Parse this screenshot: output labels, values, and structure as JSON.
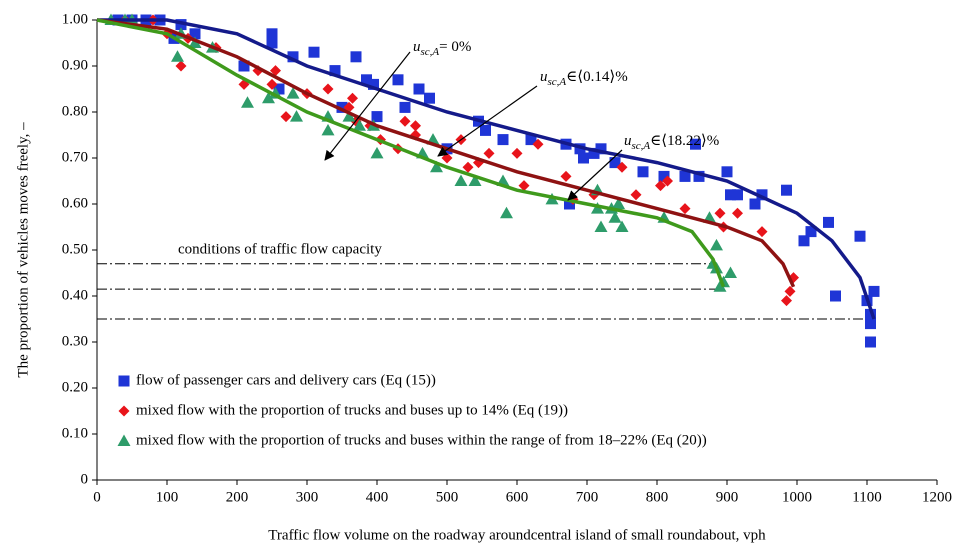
{
  "chart_data": {
    "type": "scatter",
    "xlabel": "Traffic flow volume on the roadway aroundcentral island of small roundabout, vph",
    "ylabel": "The proportion of vehicles moves freely, –",
    "xlim": [
      0,
      1200
    ],
    "ylim": [
      0,
      1
    ],
    "xticks": [
      0,
      100,
      200,
      300,
      400,
      500,
      600,
      700,
      800,
      900,
      1000,
      1100,
      1200
    ],
    "yticks": [
      0,
      {
        "value": 0.1,
        "label": "0.10"
      },
      {
        "value": 0.2,
        "label": "0.20"
      },
      {
        "value": 0.3,
        "label": "0.30"
      },
      {
        "value": 0.4,
        "label": "0.40"
      },
      {
        "value": 0.5,
        "label": "0.50"
      },
      {
        "value": 0.6,
        "label": "0.60"
      },
      {
        "value": 0.7,
        "label": "0.70"
      },
      {
        "value": 0.8,
        "label": "0.80"
      },
      {
        "value": 0.9,
        "label": "0.90"
      },
      {
        "value": 1.0,
        "label": "1.00"
      }
    ],
    "legend": "lower left",
    "series": [
      {
        "name": "flow of passenger cars and delivery cars (Eq (15))",
        "marker": "square",
        "color": "#1f35d6",
        "x": [
          30,
          50,
          70,
          90,
          110,
          120,
          140,
          210,
          250,
          250,
          260,
          280,
          310,
          340,
          350,
          370,
          385,
          395,
          400,
          430,
          440,
          460,
          475,
          500,
          545,
          555,
          580,
          620,
          670,
          675,
          690,
          695,
          710,
          720,
          740,
          780,
          810,
          840,
          855,
          860,
          900,
          905,
          915,
          940,
          950,
          985,
          1010,
          1020,
          1045,
          1055,
          1090,
          1100,
          1105,
          1105,
          1110,
          1105
        ],
        "y": [
          1.0,
          1.0,
          1.0,
          1.0,
          0.96,
          0.99,
          0.97,
          0.9,
          0.97,
          0.95,
          0.85,
          0.92,
          0.93,
          0.89,
          0.81,
          0.92,
          0.87,
          0.86,
          0.79,
          0.87,
          0.81,
          0.85,
          0.83,
          0.72,
          0.78,
          0.76,
          0.74,
          0.74,
          0.73,
          0.6,
          0.72,
          0.7,
          0.71,
          0.72,
          0.69,
          0.67,
          0.66,
          0.66,
          0.73,
          0.66,
          0.67,
          0.62,
          0.62,
          0.6,
          0.62,
          0.63,
          0.52,
          0.54,
          0.56,
          0.4,
          0.53,
          0.39,
          0.34,
          0.3,
          0.41,
          0.36
        ]
      },
      {
        "name": "mixed flow with the proportion of trucks and buses up to 14% (Eq (19))",
        "marker": "diamond",
        "color": "#e8141b",
        "x": [
          40,
          80,
          100,
          120,
          130,
          170,
          210,
          230,
          250,
          255,
          270,
          300,
          330,
          360,
          365,
          370,
          390,
          405,
          430,
          440,
          455,
          455,
          500,
          520,
          530,
          545,
          560,
          600,
          610,
          630,
          670,
          680,
          710,
          750,
          770,
          805,
          815,
          840,
          890,
          895,
          915,
          950,
          985,
          990,
          995
        ],
        "y": [
          1.0,
          1.0,
          0.97,
          0.9,
          0.96,
          0.94,
          0.86,
          0.89,
          0.86,
          0.89,
          0.79,
          0.84,
          0.85,
          0.81,
          0.83,
          0.78,
          0.77,
          0.74,
          0.72,
          0.78,
          0.77,
          0.75,
          0.7,
          0.74,
          0.68,
          0.69,
          0.71,
          0.71,
          0.64,
          0.73,
          0.66,
          0.61,
          0.62,
          0.68,
          0.62,
          0.64,
          0.65,
          0.59,
          0.58,
          0.55,
          0.58,
          0.54,
          0.39,
          0.41,
          0.44
        ]
      },
      {
        "name": "mixed flow with the proportion of trucks and buses within the range of from 18–22% (Eq (20))",
        "marker": "triangle",
        "color": "#2e9c6a",
        "x": [
          20,
          40,
          50,
          115,
          120,
          140,
          165,
          215,
          245,
          255,
          280,
          285,
          330,
          330,
          360,
          375,
          395,
          400,
          465,
          480,
          485,
          520,
          540,
          580,
          585,
          650,
          715,
          715,
          720,
          735,
          740,
          745,
          750,
          810,
          875,
          880,
          885,
          885,
          890,
          895,
          905
        ],
        "y": [
          1.0,
          1.0,
          1.0,
          0.92,
          0.97,
          0.95,
          0.94,
          0.82,
          0.83,
          0.84,
          0.84,
          0.79,
          0.79,
          0.76,
          0.79,
          0.77,
          0.77,
          0.71,
          0.71,
          0.74,
          0.68,
          0.65,
          0.65,
          0.65,
          0.58,
          0.61,
          0.63,
          0.59,
          0.55,
          0.59,
          0.57,
          0.6,
          0.55,
          0.57,
          0.57,
          0.47,
          0.51,
          0.46,
          0.42,
          0.43,
          0.45
        ]
      }
    ],
    "curves": [
      {
        "color": "#141a8a",
        "x": [
          0,
          100,
          200,
          300,
          400,
          500,
          600,
          700,
          800,
          900,
          1000,
          1050,
          1090,
          1110
        ],
        "y": [
          1.0,
          1.0,
          0.97,
          0.9,
          0.85,
          0.8,
          0.76,
          0.72,
          0.69,
          0.65,
          0.58,
          0.52,
          0.44,
          0.35
        ]
      },
      {
        "color": "#8e1212",
        "x": [
          0,
          100,
          200,
          300,
          400,
          500,
          600,
          700,
          800,
          900,
          950,
          980,
          995
        ],
        "y": [
          1.0,
          0.98,
          0.92,
          0.84,
          0.77,
          0.72,
          0.67,
          0.63,
          0.59,
          0.55,
          0.52,
          0.47,
          0.42
        ]
      },
      {
        "color": "#3f9a1c",
        "x": [
          0,
          100,
          200,
          300,
          400,
          500,
          600,
          700,
          800,
          850,
          880,
          895
        ],
        "y": [
          1.0,
          0.97,
          0.88,
          0.8,
          0.74,
          0.68,
          0.63,
          0.6,
          0.57,
          0.54,
          0.48,
          0.42
        ]
      }
    ],
    "reference_lines": [
      {
        "y": 0.47,
        "x": [
          0,
          880
        ]
      },
      {
        "y": 0.415,
        "x": [
          0,
          900
        ]
      },
      {
        "y": 0.35,
        "x": [
          0,
          1110
        ]
      }
    ],
    "capacity_note": "conditions of traffic flow capacity",
    "annotations": [
      {
        "base": "u",
        "sub": "sc,A",
        "text": "= 0%"
      },
      {
        "base": "u",
        "sub": "sc,A",
        "text": "∈⟨0.14⟩%"
      },
      {
        "base": "u",
        "sub": "sc,A",
        "text": "∈⟨18.22⟩%"
      }
    ]
  }
}
